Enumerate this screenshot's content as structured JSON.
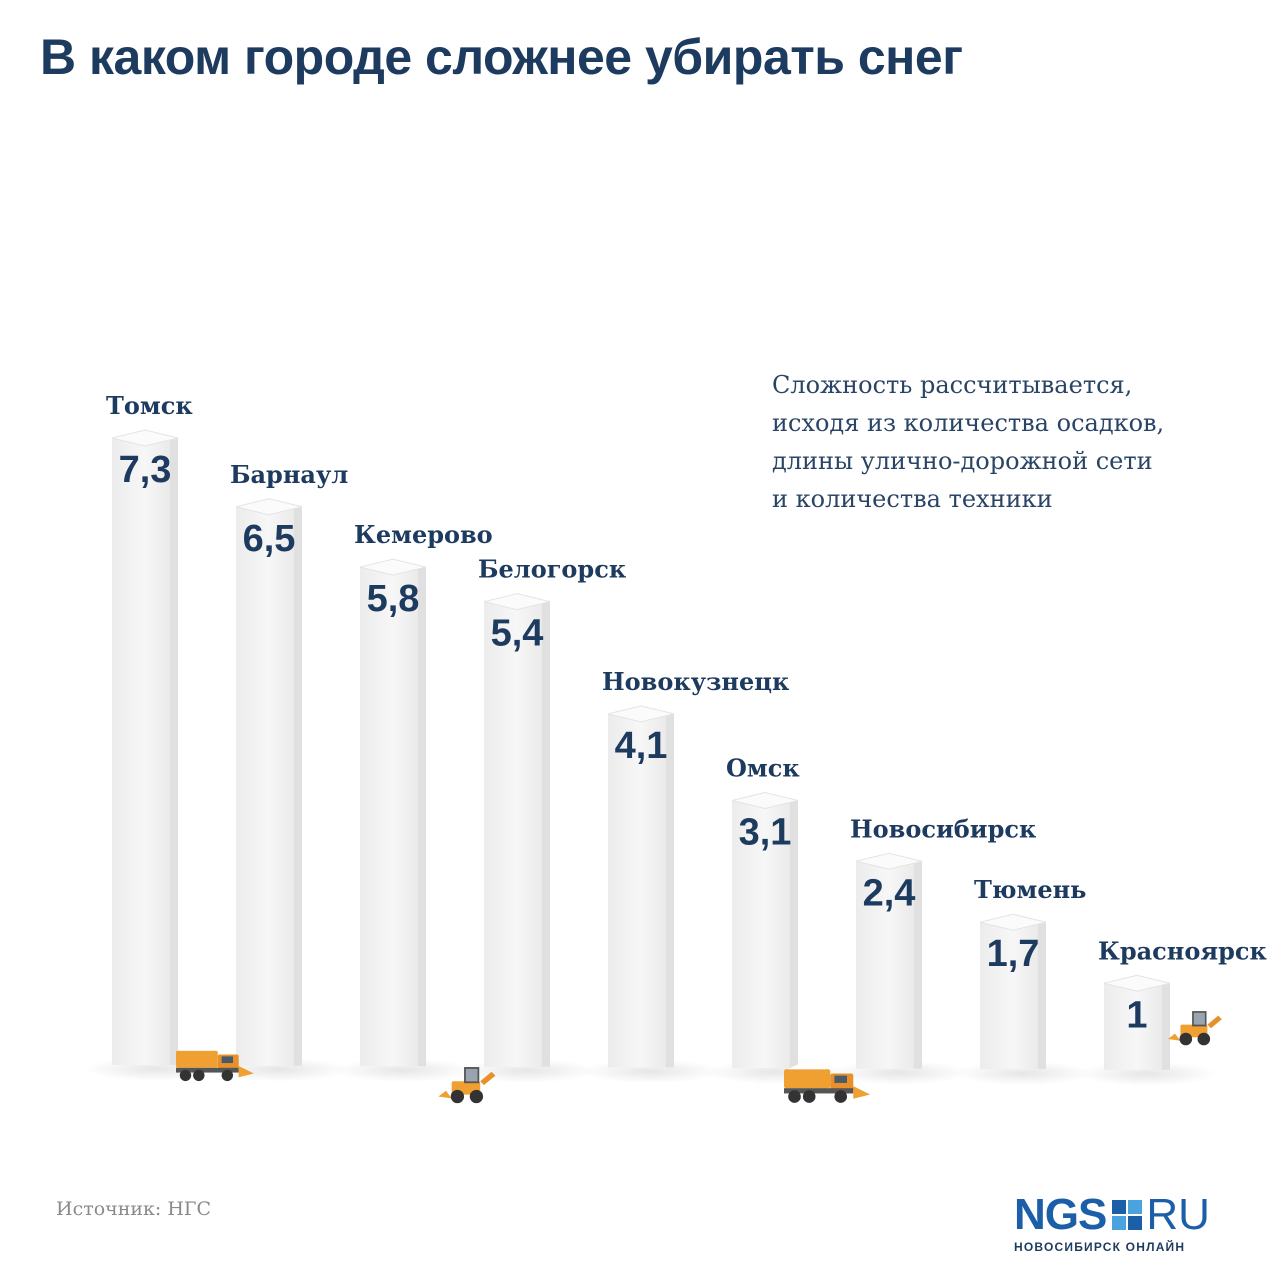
{
  "title": "В каком городе сложнее убирать снег",
  "note": {
    "lines": [
      "Сложность рассчитывается,",
      "исходя из количества осадков,",
      "длины улично-дорожной сети",
      "и количества техники"
    ]
  },
  "source": "Источник: НГС",
  "logo": {
    "brand": "NGS",
    "domain": "RU",
    "subtitle": "НОВОСИБИРСК ОНЛАЙН"
  },
  "colors": {
    "text_dark": "#1d3a5f",
    "column": "#f2f2f2",
    "machine": "#f0a030"
  },
  "chart_data": {
    "type": "bar",
    "categories": [
      "Томск",
      "Барнаул",
      "Кемерово",
      "Белогорск",
      "Новокузнецк",
      "Омск",
      "Новосибирск",
      "Тюмень",
      "Красноярск"
    ],
    "values": [
      7.3,
      6.5,
      5.8,
      5.4,
      4.1,
      3.1,
      2.4,
      1.7,
      1
    ],
    "value_labels": [
      "7,3",
      "6,5",
      "5,8",
      "5,4",
      "4,1",
      "3,1",
      "2,4",
      "1,7",
      "1"
    ],
    "title": "В каком городе сложнее убирать снег",
    "xlabel": "",
    "ylabel": "",
    "ylim": [
      0,
      7.3
    ],
    "grid": false,
    "legend": "none"
  }
}
